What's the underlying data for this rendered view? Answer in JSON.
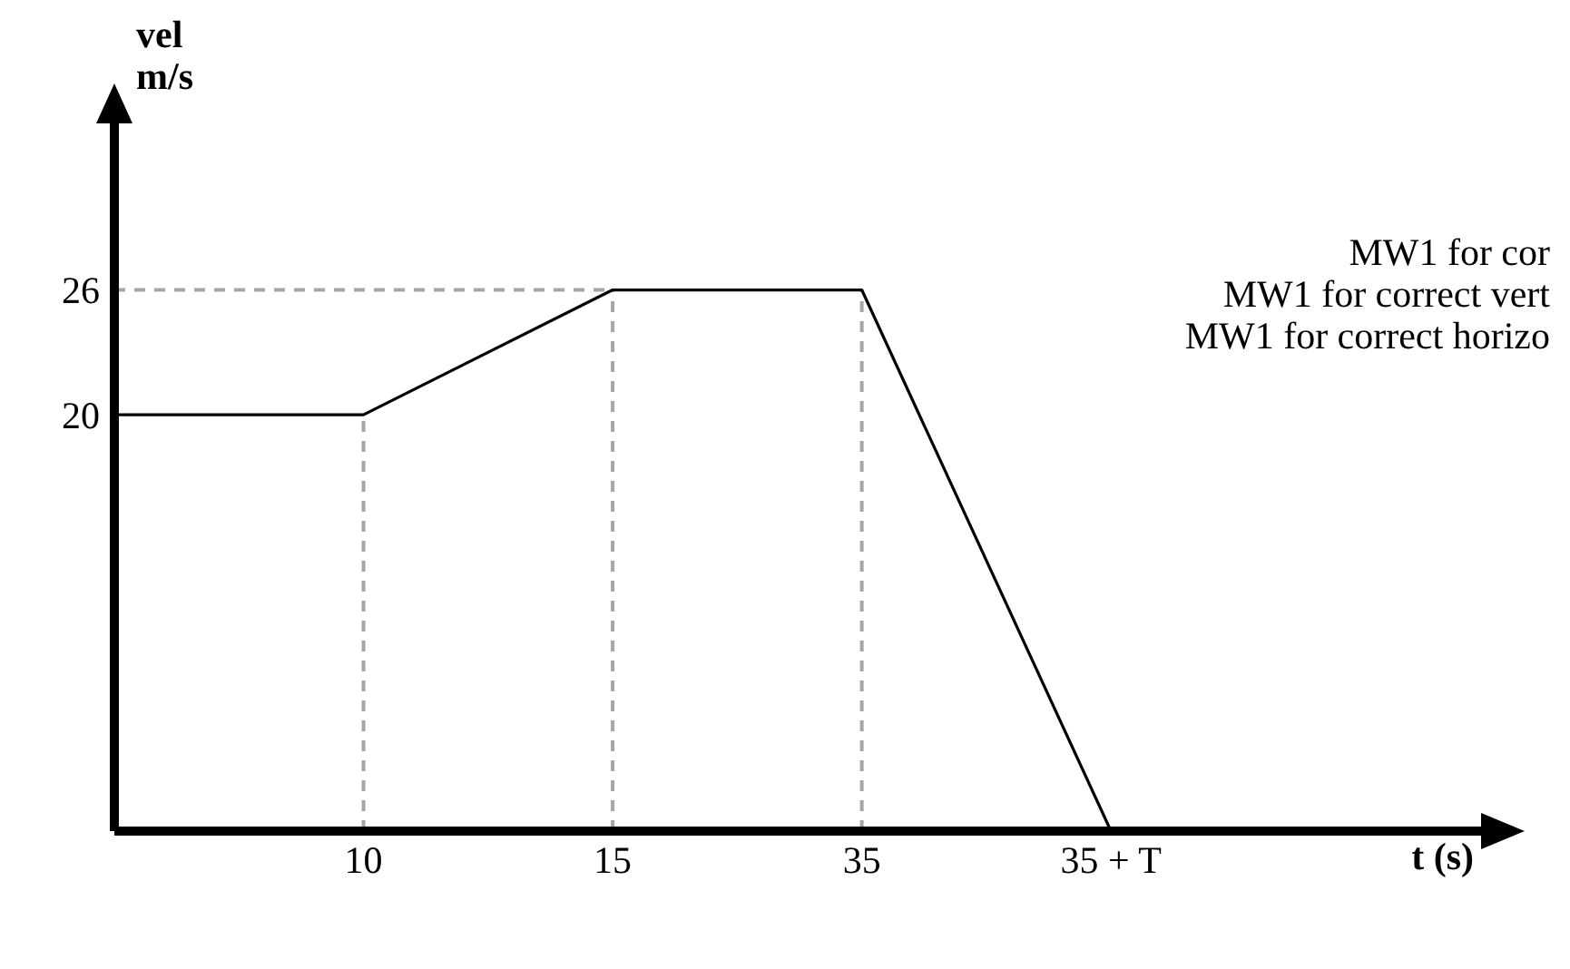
{
  "chart_data": {
    "type": "line",
    "xlabel": "t (s)",
    "ylabel": "vel\nm/s",
    "categories": [
      null,
      "10",
      "15",
      "35",
      "35 + T"
    ],
    "series": [
      {
        "color": "#000000",
        "values": [
          20,
          20,
          26,
          26,
          0
        ]
      }
    ],
    "ylim": [
      0,
      34
    ],
    "yticks": [
      20,
      26
    ],
    "ref_lines": [
      {
        "axis": "y",
        "value": 26,
        "color": "#a6a6a6",
        "line_style": "dashed"
      },
      {
        "axis": "x",
        "value": "10",
        "color": "#a6a6a6",
        "line_style": "dashed"
      },
      {
        "axis": "x",
        "value": "15",
        "color": "#a6a6a6",
        "line_style": "dashed"
      },
      {
        "axis": "x",
        "value": "35",
        "color": "#a6a6a6",
        "line_style": "dashed"
      }
    ],
    "annotations": [
      "MW1 for cor",
      "MW1 for correct vert",
      "MW1 for correct horizo"
    ],
    "grid": false,
    "legend": false,
    "marker": "none",
    "line_style": "solid"
  }
}
